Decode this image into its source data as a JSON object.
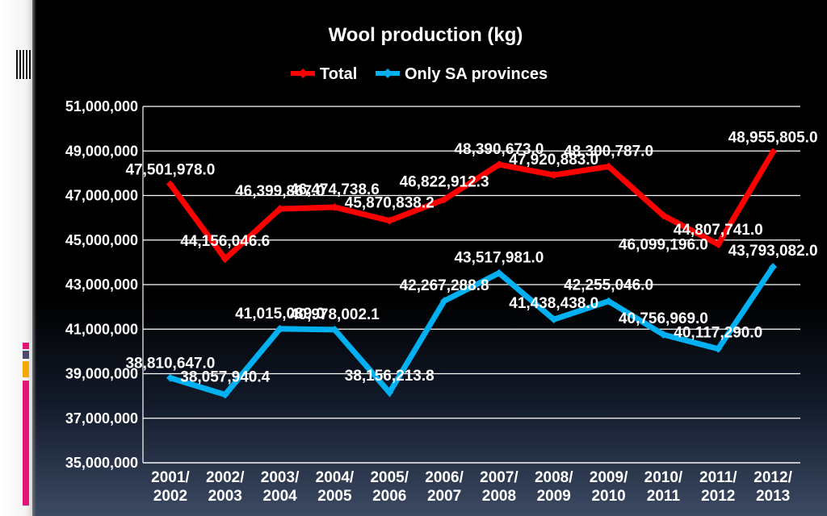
{
  "chart_data": {
    "type": "line",
    "title": "Wool production (kg)",
    "xlabel": "",
    "ylabel": "",
    "ylim": [
      35000000,
      51000000
    ],
    "yticks": [
      "35,000,000",
      "37,000,000",
      "39,000,000",
      "41,000,000",
      "43,000,000",
      "45,000,000",
      "47,000,000",
      "49,000,000",
      "51,000,000"
    ],
    "yticks_values": [
      35000000,
      37000000,
      39000000,
      41000000,
      43000000,
      45000000,
      47000000,
      49000000,
      51000000
    ],
    "categories": [
      [
        "2001/",
        "2002"
      ],
      [
        "2002/",
        "2003"
      ],
      [
        "2003/",
        "2004"
      ],
      [
        "2004/",
        "2005"
      ],
      [
        "2005/",
        "2006"
      ],
      [
        "2006/",
        "2007"
      ],
      [
        "2007/",
        "2008"
      ],
      [
        "2008/",
        "2009"
      ],
      [
        "2009/",
        "2010"
      ],
      [
        "2010/",
        "2011"
      ],
      [
        "2011/",
        "2012"
      ],
      [
        "2012/",
        "2013"
      ]
    ],
    "legend_position": "top",
    "grid": true,
    "series": [
      {
        "name": "Total",
        "color": "#ff0000",
        "values": [
          47501978.0,
          44156046.6,
          46399867.0,
          46474738.6,
          45870838.2,
          46822912.3,
          48390673.0,
          47920883.0,
          48300787.0,
          46099196.0,
          44807741.0,
          48955805.0
        ],
        "labels": [
          "47,501,978.0",
          "44,156,046.6",
          "46,399,867.0",
          "46,474,738.6",
          "45,870,838.2",
          "46,822,912.3",
          "48,390,673.0",
          "47,920,883.0",
          "48,300,787.0",
          "46,099,196.0",
          "44,807,741.0",
          "48,955,805.0"
        ]
      },
      {
        "name": "Only SA provinces",
        "color": "#00b0f0",
        "values": [
          38810647.0,
          38057940.4,
          41015089.0,
          40978002.1,
          38156213.8,
          42267288.8,
          43517981.0,
          41438438.0,
          42255046.0,
          40756969.0,
          40117290.0,
          43793082.0
        ],
        "labels": [
          "38,810,647.0",
          "38,057,940.4",
          "41,015,089.0",
          "40,978,002.1",
          "38,156,213.8",
          "42,267,288.8",
          "43,517,981.0",
          "41,438,438.0",
          "42,255,046.0",
          "40,756,969.0",
          "40,117,290.0",
          "43,793,082.0"
        ]
      }
    ]
  }
}
